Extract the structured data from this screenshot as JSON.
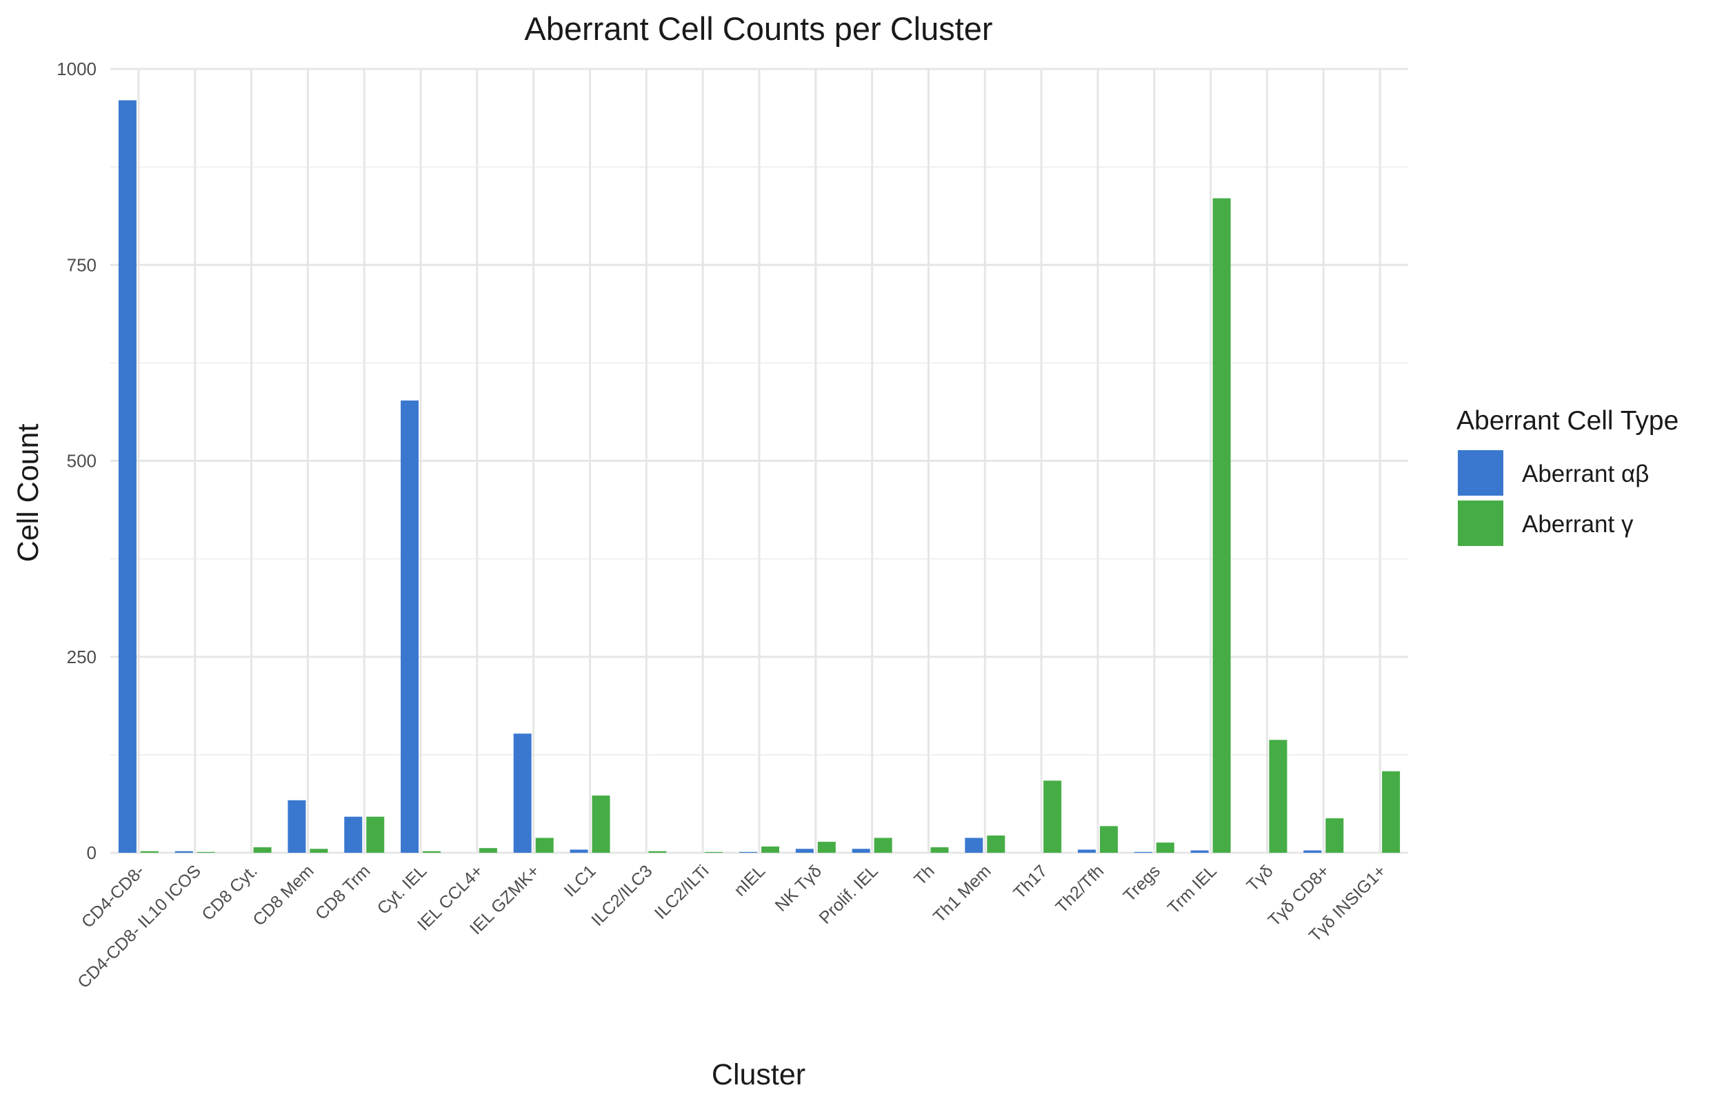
{
  "chart_data": {
    "type": "bar",
    "title": "Aberrant Cell Counts per Cluster",
    "xlabel": "Cluster",
    "ylabel": "Cell Count",
    "ylim": [
      0,
      1000
    ],
    "yticks": [
      0,
      250,
      500,
      750,
      1000
    ],
    "grid": true,
    "legend": {
      "title": "Aberrant Cell Type",
      "placement": "right"
    },
    "categories": [
      "CD4-CD8-",
      "CD4-CD8- IL10 ICOS",
      "CD8 Cyt.",
      "CD8 Mem",
      "CD8 Trm",
      "Cyt. IEL",
      "IEL CCL4+",
      "IEL GZMK+",
      "ILC1",
      "ILC2/ILC3",
      "ILC2/ILTi",
      "nIEL",
      "NK Tγδ",
      "Prolif. IEL",
      "Th",
      "Th1 Mem",
      "Th17",
      "Th2/Tfh",
      "Tregs",
      "Trm IEL",
      "Tγδ",
      "Tγδ CD8+",
      "Tγδ INSIG1+"
    ],
    "series": [
      {
        "name": "Aberrant αβ",
        "color": "#3a78cf",
        "values": [
          960,
          2,
          0,
          67,
          46,
          577,
          0,
          152,
          4,
          0,
          0,
          1,
          5,
          5,
          0,
          19,
          0,
          4,
          1,
          3,
          0,
          3,
          0
        ]
      },
      {
        "name": "Aberrant γ",
        "color": "#46ad46",
        "values": [
          2,
          1,
          7,
          5,
          46,
          2,
          6,
          19,
          73,
          2,
          1,
          8,
          14,
          19,
          7,
          22,
          92,
          34,
          13,
          835,
          144,
          44,
          104
        ]
      }
    ]
  }
}
